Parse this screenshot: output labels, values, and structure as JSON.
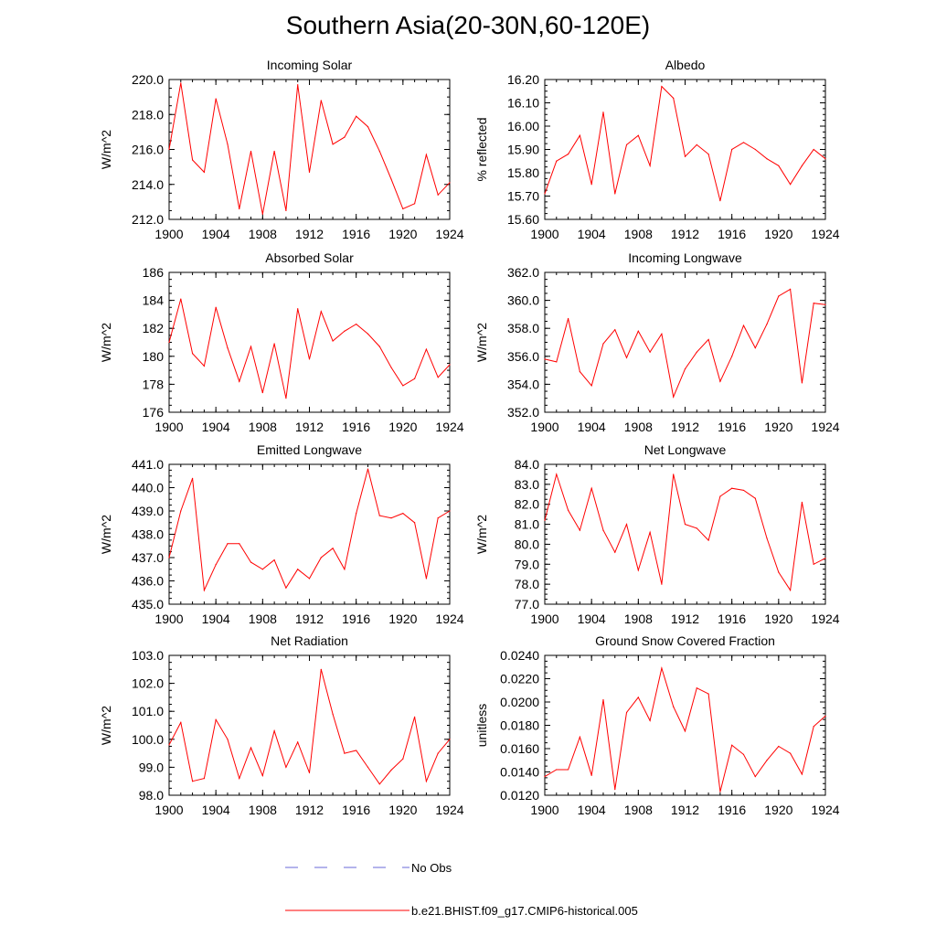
{
  "title": "Southern Asia(20-30N,60-120E)",
  "legend": {
    "no_obs_label": "No Obs",
    "model_label": "b.e21.BHIST.f09_g17.CMIP6-historical.005",
    "colors": {
      "no_obs": "#6a6ad8",
      "model": "#ff0000"
    }
  },
  "chart_data": [
    {
      "type": "line",
      "title": "Incoming Solar",
      "ylabel": "W/m^2",
      "x": [
        1900,
        1901,
        1902,
        1903,
        1904,
        1905,
        1906,
        1907,
        1908,
        1909,
        1910,
        1911,
        1912,
        1913,
        1914,
        1915,
        1916,
        1917,
        1918,
        1919,
        1920,
        1921,
        1922,
        1923,
        1924
      ],
      "series": [
        {
          "name": "b.e21.BHIST.f09_g17.CMIP6-historical.005",
          "values": [
            216.0,
            219.8,
            215.4,
            214.7,
            218.9,
            216.3,
            212.6,
            215.9,
            212.3,
            215.9,
            212.5,
            219.7,
            214.7,
            218.8,
            216.3,
            216.7,
            217.9,
            217.3,
            215.9,
            214.3,
            212.6,
            212.9,
            215.7,
            213.4,
            214.1
          ]
        }
      ],
      "xlim": [
        1900,
        1924
      ],
      "ylim": [
        212.0,
        220.0
      ],
      "yticks": [
        212.0,
        214.0,
        216.0,
        218.0,
        220.0
      ],
      "ytick_labels": [
        "212.0",
        "214.0",
        "216.0",
        "218.0",
        "220.0"
      ],
      "xticks": [
        1900,
        1904,
        1908,
        1912,
        1916,
        1920,
        1924
      ],
      "xtick_labels": [
        "1900",
        "1904",
        "1908",
        "1912",
        "1916",
        "1920",
        "1924"
      ]
    },
    {
      "type": "line",
      "title": "Albedo",
      "ylabel": "% reflected",
      "x": [
        1900,
        1901,
        1902,
        1903,
        1904,
        1905,
        1906,
        1907,
        1908,
        1909,
        1910,
        1911,
        1912,
        1913,
        1914,
        1915,
        1916,
        1917,
        1918,
        1919,
        1920,
        1921,
        1922,
        1923,
        1924
      ],
      "series": [
        {
          "name": "b.e21.BHIST.f09_g17.CMIP6-historical.005",
          "values": [
            15.71,
            15.85,
            15.88,
            15.96,
            15.75,
            16.06,
            15.71,
            15.92,
            15.96,
            15.83,
            16.17,
            16.12,
            15.87,
            15.92,
            15.88,
            15.68,
            15.9,
            15.93,
            15.9,
            15.86,
            15.83,
            15.75,
            15.83,
            15.9,
            15.86
          ]
        }
      ],
      "xlim": [
        1900,
        1924
      ],
      "ylim": [
        15.6,
        16.2
      ],
      "yticks": [
        15.6,
        15.7,
        15.8,
        15.9,
        16.0,
        16.1,
        16.2
      ],
      "ytick_labels": [
        "15.60",
        "15.70",
        "15.80",
        "15.90",
        "16.00",
        "16.10",
        "16.20"
      ],
      "xticks": [
        1900,
        1904,
        1908,
        1912,
        1916,
        1920,
        1924
      ],
      "xtick_labels": [
        "1900",
        "1904",
        "1908",
        "1912",
        "1916",
        "1920",
        "1924"
      ]
    },
    {
      "type": "line",
      "title": "Absorbed Solar",
      "ylabel": "W/m^2",
      "x": [
        1900,
        1901,
        1902,
        1903,
        1904,
        1905,
        1906,
        1907,
        1908,
        1909,
        1910,
        1911,
        1912,
        1913,
        1914,
        1915,
        1916,
        1917,
        1918,
        1919,
        1920,
        1921,
        1922,
        1923,
        1924
      ],
      "series": [
        {
          "name": "b.e21.BHIST.f09_g17.CMIP6-historical.005",
          "values": [
            181.0,
            184.1,
            180.2,
            179.3,
            183.5,
            180.6,
            178.2,
            180.7,
            177.4,
            180.9,
            177.0,
            183.4,
            179.8,
            183.2,
            181.1,
            181.8,
            182.3,
            181.6,
            180.7,
            179.2,
            177.9,
            178.4,
            180.5,
            178.5,
            179.4
          ]
        }
      ],
      "xlim": [
        1900,
        1924
      ],
      "ylim": [
        176,
        186
      ],
      "yticks": [
        176,
        178,
        180,
        182,
        184,
        186
      ],
      "ytick_labels": [
        "176",
        "178",
        "180",
        "182",
        "184",
        "186"
      ],
      "xticks": [
        1900,
        1904,
        1908,
        1912,
        1916,
        1920,
        1924
      ],
      "xtick_labels": [
        "1900",
        "1904",
        "1908",
        "1912",
        "1916",
        "1920",
        "1924"
      ]
    },
    {
      "type": "line",
      "title": "Incoming Longwave",
      "ylabel": "W/m^2",
      "x": [
        1900,
        1901,
        1902,
        1903,
        1904,
        1905,
        1906,
        1907,
        1908,
        1909,
        1910,
        1911,
        1912,
        1913,
        1914,
        1915,
        1916,
        1917,
        1918,
        1919,
        1920,
        1921,
        1922,
        1923,
        1924
      ],
      "series": [
        {
          "name": "b.e21.BHIST.f09_g17.CMIP6-historical.005",
          "values": [
            355.8,
            355.6,
            358.7,
            354.9,
            353.9,
            356.9,
            357.9,
            355.9,
            357.8,
            356.3,
            357.6,
            353.1,
            355.1,
            356.3,
            357.2,
            354.2,
            356.0,
            358.2,
            356.6,
            358.3,
            360.3,
            360.8,
            354.1,
            359.8,
            359.7
          ]
        }
      ],
      "xlim": [
        1900,
        1924
      ],
      "ylim": [
        352.0,
        362.0
      ],
      "yticks": [
        352.0,
        354.0,
        356.0,
        358.0,
        360.0,
        362.0
      ],
      "ytick_labels": [
        "352.0",
        "354.0",
        "356.0",
        "358.0",
        "360.0",
        "362.0"
      ],
      "xticks": [
        1900,
        1904,
        1908,
        1912,
        1916,
        1920,
        1924
      ],
      "xtick_labels": [
        "1900",
        "1904",
        "1908",
        "1912",
        "1916",
        "1920",
        "1924"
      ]
    },
    {
      "type": "line",
      "title": "Emitted Longwave",
      "ylabel": "W/m^2",
      "x": [
        1900,
        1901,
        1902,
        1903,
        1904,
        1905,
        1906,
        1907,
        1908,
        1909,
        1910,
        1911,
        1912,
        1913,
        1914,
        1915,
        1916,
        1917,
        1918,
        1919,
        1920,
        1921,
        1922,
        1923,
        1924
      ],
      "series": [
        {
          "name": "b.e21.BHIST.f09_g17.CMIP6-historical.005",
          "values": [
            437.0,
            439.0,
            440.4,
            435.6,
            436.7,
            437.6,
            437.6,
            436.8,
            436.5,
            436.9,
            435.7,
            436.5,
            436.1,
            437.0,
            437.4,
            436.5,
            438.9,
            440.8,
            438.8,
            438.7,
            438.9,
            438.5,
            436.1,
            438.7,
            439.0
          ]
        }
      ],
      "xlim": [
        1900,
        1924
      ],
      "ylim": [
        435.0,
        441.0
      ],
      "yticks": [
        435.0,
        436.0,
        437.0,
        438.0,
        439.0,
        440.0,
        441.0
      ],
      "ytick_labels": [
        "435.0",
        "436.0",
        "437.0",
        "438.0",
        "439.0",
        "440.0",
        "441.0"
      ],
      "xticks": [
        1900,
        1904,
        1908,
        1912,
        1916,
        1920,
        1924
      ],
      "xtick_labels": [
        "1900",
        "1904",
        "1908",
        "1912",
        "1916",
        "1920",
        "1924"
      ]
    },
    {
      "type": "line",
      "title": "Net Longwave",
      "ylabel": "W/m^2",
      "x": [
        1900,
        1901,
        1902,
        1903,
        1904,
        1905,
        1906,
        1907,
        1908,
        1909,
        1910,
        1911,
        1912,
        1913,
        1914,
        1915,
        1916,
        1917,
        1918,
        1919,
        1920,
        1921,
        1922,
        1923,
        1924
      ],
      "series": [
        {
          "name": "b.e21.BHIST.f09_g17.CMIP6-historical.005",
          "values": [
            81.2,
            83.5,
            81.7,
            80.7,
            82.8,
            80.7,
            79.6,
            81.0,
            78.7,
            80.6,
            78.0,
            83.5,
            81.0,
            80.8,
            80.2,
            82.4,
            82.8,
            82.7,
            82.3,
            80.3,
            78.6,
            77.7,
            82.1,
            79.0,
            79.3
          ]
        }
      ],
      "xlim": [
        1900,
        1924
      ],
      "ylim": [
        77.0,
        84.0
      ],
      "yticks": [
        77.0,
        78.0,
        79.0,
        80.0,
        81.0,
        82.0,
        83.0,
        84.0
      ],
      "ytick_labels": [
        "77.0",
        "78.0",
        "79.0",
        "80.0",
        "81.0",
        "82.0",
        "83.0",
        "84.0"
      ],
      "xticks": [
        1900,
        1904,
        1908,
        1912,
        1916,
        1920,
        1924
      ],
      "xtick_labels": [
        "1900",
        "1904",
        "1908",
        "1912",
        "1916",
        "1920",
        "1924"
      ]
    },
    {
      "type": "line",
      "title": "Net Radiation",
      "ylabel": "W/m^2",
      "x": [
        1900,
        1901,
        1902,
        1903,
        1904,
        1905,
        1906,
        1907,
        1908,
        1909,
        1910,
        1911,
        1912,
        1913,
        1914,
        1915,
        1916,
        1917,
        1918,
        1919,
        1920,
        1921,
        1922,
        1923,
        1924
      ],
      "series": [
        {
          "name": "b.e21.BHIST.f09_g17.CMIP6-historical.005",
          "values": [
            99.8,
            100.6,
            98.5,
            98.6,
            100.7,
            100.0,
            98.6,
            99.7,
            98.7,
            100.3,
            99.0,
            99.9,
            98.8,
            102.5,
            100.9,
            99.5,
            99.6,
            99.0,
            98.4,
            98.9,
            99.3,
            100.8,
            98.5,
            99.5,
            100.0
          ]
        }
      ],
      "xlim": [
        1900,
        1924
      ],
      "ylim": [
        98.0,
        103.0
      ],
      "yticks": [
        98.0,
        99.0,
        100.0,
        101.0,
        102.0,
        103.0
      ],
      "ytick_labels": [
        "98.0",
        "99.0",
        "100.0",
        "101.0",
        "102.0",
        "103.0"
      ],
      "xticks": [
        1900,
        1904,
        1908,
        1912,
        1916,
        1920,
        1924
      ],
      "xtick_labels": [
        "1900",
        "1904",
        "1908",
        "1912",
        "1916",
        "1920",
        "1924"
      ]
    },
    {
      "type": "line",
      "title": "Ground Snow Covered Fraction",
      "ylabel": "unitless",
      "x": [
        1900,
        1901,
        1902,
        1903,
        1904,
        1905,
        1906,
        1907,
        1908,
        1909,
        1910,
        1911,
        1912,
        1913,
        1914,
        1915,
        1916,
        1917,
        1918,
        1919,
        1920,
        1921,
        1922,
        1923,
        1924
      ],
      "series": [
        {
          "name": "b.e21.BHIST.f09_g17.CMIP6-historical.005",
          "values": [
            0.0136,
            0.0142,
            0.0142,
            0.017,
            0.0137,
            0.0202,
            0.0125,
            0.0191,
            0.0204,
            0.0184,
            0.0229,
            0.0196,
            0.0175,
            0.0212,
            0.0207,
            0.0123,
            0.0163,
            0.0155,
            0.0136,
            0.015,
            0.0162,
            0.0156,
            0.0138,
            0.0179,
            0.0188
          ]
        }
      ],
      "xlim": [
        1900,
        1924
      ],
      "ylim": [
        0.012,
        0.024
      ],
      "yticks": [
        0.012,
        0.014,
        0.016,
        0.018,
        0.02,
        0.022,
        0.024
      ],
      "ytick_labels": [
        "0.0120",
        "0.0140",
        "0.0160",
        "0.0180",
        "0.0200",
        "0.0220",
        "0.0240"
      ],
      "xticks": [
        1900,
        1904,
        1908,
        1912,
        1916,
        1920,
        1924
      ],
      "xtick_labels": [
        "1900",
        "1904",
        "1908",
        "1912",
        "1916",
        "1920",
        "1924"
      ]
    }
  ]
}
